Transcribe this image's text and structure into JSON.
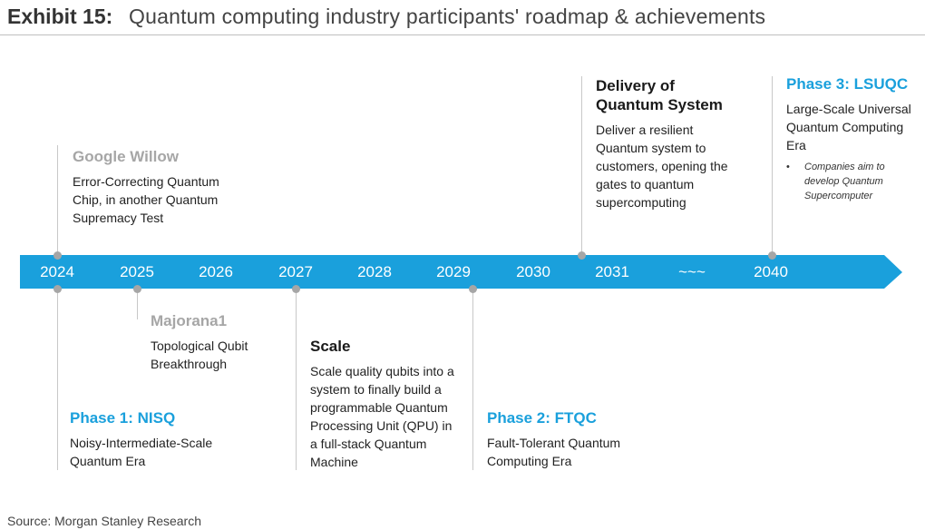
{
  "header": {
    "label": "Exhibit 15:",
    "title": "Quantum computing industry participants' roadmap & achievements"
  },
  "timeline": {
    "color": "#1aa0dc",
    "years": [
      "2024",
      "2025",
      "2026",
      "2027",
      "2028",
      "2029",
      "2030",
      "2031",
      "~~~",
      "2040"
    ]
  },
  "milestones": {
    "google_willow": {
      "title": "Google Willow",
      "body": "Error-Correcting Quantum\nChip, in another Quantum\nSupremacy Test"
    },
    "delivery": {
      "title": "Delivery of\nQuantum System",
      "body": "Deliver a resilient\nQuantum system to\ncustomers, opening the\ngates to quantum\nsupercomputing"
    },
    "phase3": {
      "title": "Phase 3: LSUQC",
      "body": "Large-Scale Universal\nQuantum Computing\nEra",
      "bullet_symbol": "•",
      "bullet": "Companies aim to\ndevelop Quantum\nSupercomputer"
    },
    "majorana": {
      "title": "Majorana1",
      "body": "Topological Qubit\nBreakthrough"
    },
    "phase1": {
      "title": "Phase 1: NISQ",
      "body": "Noisy-Intermediate-Scale\nQuantum Era"
    },
    "scale": {
      "title": "Scale",
      "body": "Scale quality qubits into a\nsystem to finally build a\nprogrammable Quantum\nProcessing Unit (QPU) in\na full-stack Quantum\nMachine"
    },
    "phase2": {
      "title": "Phase 2: FTQC",
      "body": "Fault-Tolerant Quantum\nComputing Era"
    }
  },
  "footer": {
    "source": "Source: Morgan Stanley Research"
  }
}
